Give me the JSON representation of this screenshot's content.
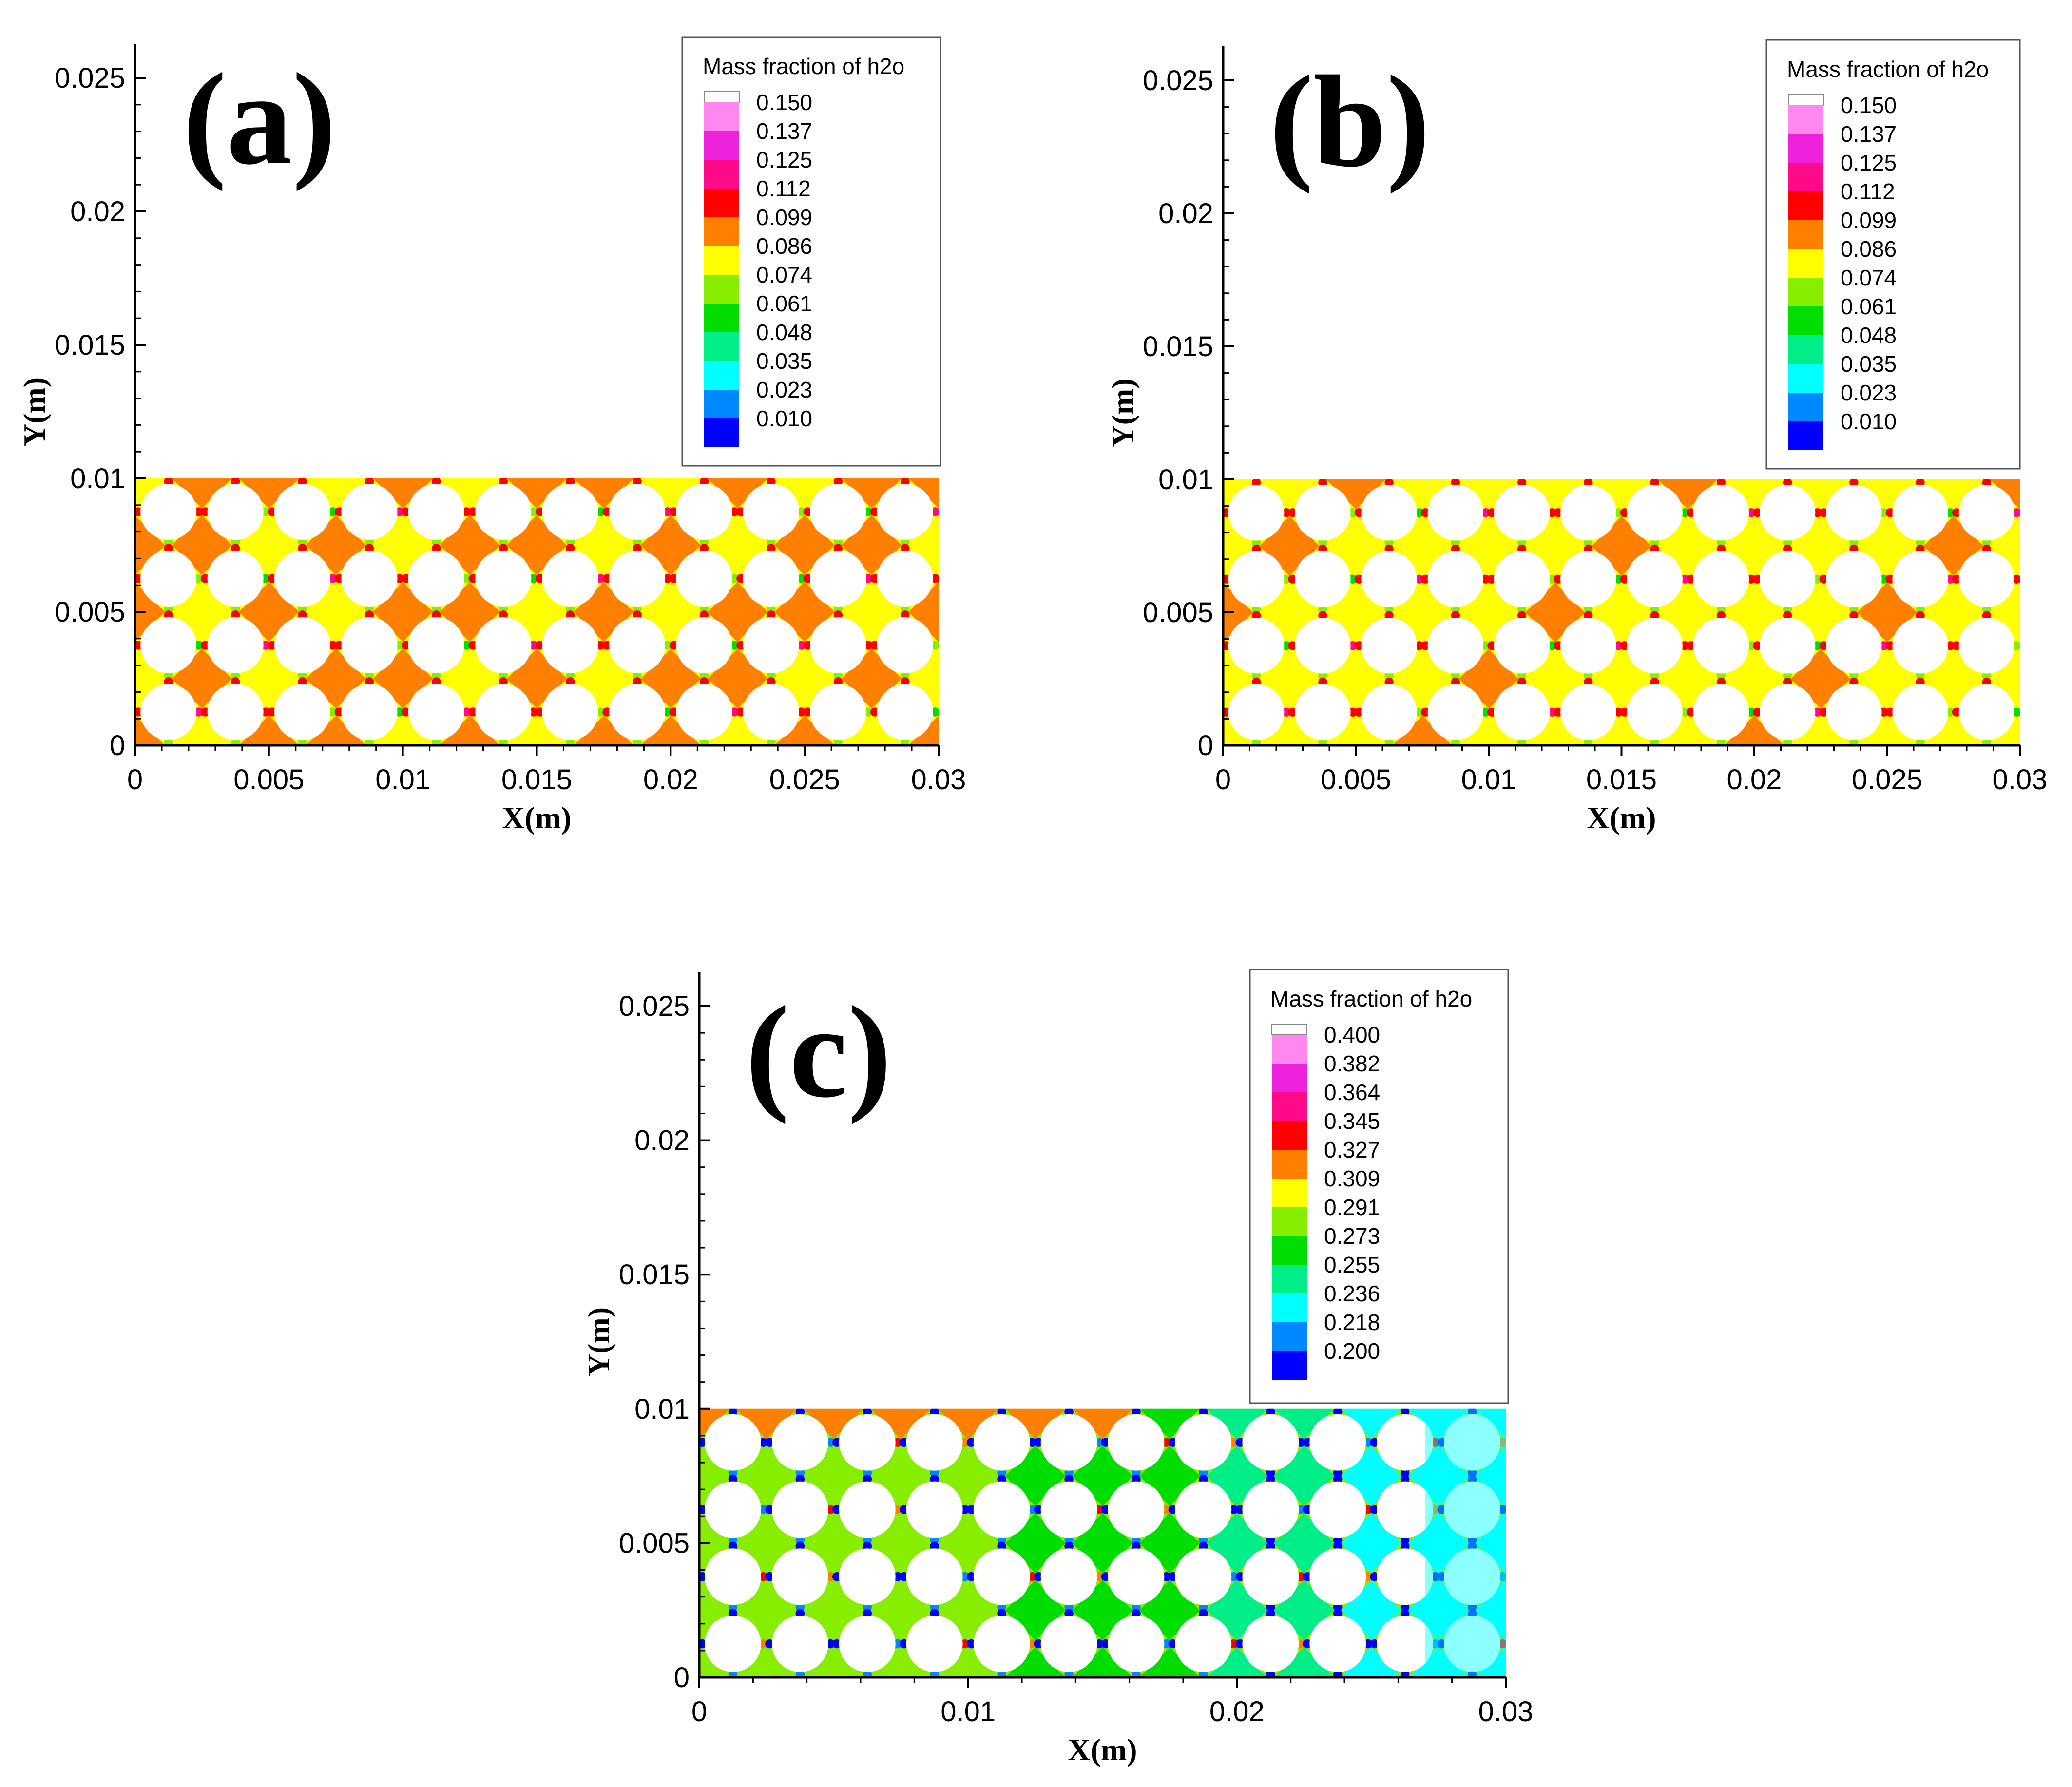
{
  "chart_data": [
    {
      "type": "heatmap",
      "panel_label": "(a)",
      "xlabel": "X(m)",
      "ylabel": "Y(m)",
      "xlim": [
        0,
        0.03
      ],
      "ylim": [
        0,
        0.025
      ],
      "x_ticks": [
        "0",
        "0.005",
        "0.01",
        "0.015",
        "0.02",
        "0.025",
        "0.03"
      ],
      "y_ticks": [
        "0",
        "0.005",
        "0.01",
        "0.015",
        "0.02",
        "0.025"
      ],
      "domain": {
        "x": [
          0,
          0.03
        ],
        "y": [
          0,
          0.01
        ]
      },
      "field": "orange-yellow dominant",
      "legend": {
        "title": "Mass fraction of h2o",
        "placement": "top-right",
        "levels": [
          "0.150",
          "0.137",
          "0.125",
          "0.112",
          "0.099",
          "0.086",
          "0.074",
          "0.061",
          "0.048",
          "0.035",
          "0.023",
          "0.010"
        ]
      }
    },
    {
      "type": "heatmap",
      "panel_label": "(b)",
      "xlabel": "X(m)",
      "ylabel": "Y(m)",
      "xlim": [
        0,
        0.03
      ],
      "ylim": [
        0,
        0.025
      ],
      "x_ticks": [
        "0",
        "0.005",
        "0.01",
        "0.015",
        "0.02",
        "0.025",
        "0.03"
      ],
      "y_ticks": [
        "0",
        "0.005",
        "0.01",
        "0.015",
        "0.02",
        "0.025"
      ],
      "domain": {
        "x": [
          0,
          0.03
        ],
        "y": [
          0,
          0.01
        ]
      },
      "field": "yellow-orange dominant",
      "legend": {
        "title": "Mass fraction of h2o",
        "placement": "top-right",
        "levels": [
          "0.150",
          "0.137",
          "0.125",
          "0.112",
          "0.099",
          "0.086",
          "0.074",
          "0.061",
          "0.048",
          "0.035",
          "0.023",
          "0.010"
        ]
      }
    },
    {
      "type": "heatmap",
      "panel_label": "(c)",
      "xlabel": "X(m)",
      "ylabel": "Y(m)",
      "xlim": [
        0,
        0.03
      ],
      "ylim": [
        0,
        0.025
      ],
      "x_ticks": [
        "0",
        "0.01",
        "0.02",
        "0.03"
      ],
      "y_ticks": [
        "0",
        "0.005",
        "0.01",
        "0.015",
        "0.02",
        "0.025"
      ],
      "domain": {
        "x": [
          0,
          0.03
        ],
        "y": [
          0,
          0.01
        ]
      },
      "field": "green-cyan dominant, blue toward right",
      "legend": {
        "title": "Mass fraction of h2o",
        "placement": "top-right",
        "levels": [
          "0.400",
          "0.382",
          "0.364",
          "0.345",
          "0.327",
          "0.309",
          "0.291",
          "0.273",
          "0.255",
          "0.236",
          "0.218",
          "0.200"
        ]
      }
    }
  ],
  "colors": {
    "scale": [
      "#ff88ee",
      "#ee22dd",
      "#ff0a88",
      "#ff0000",
      "#ff7f00",
      "#ffff00",
      "#88ee00",
      "#00dd00",
      "#00ee88",
      "#00ffff",
      "#0088ff",
      "#0000ff"
    ],
    "top_swatch": "#ffffff"
  },
  "icons": {
    "obstacle": "circle-obstacle-icon"
  }
}
